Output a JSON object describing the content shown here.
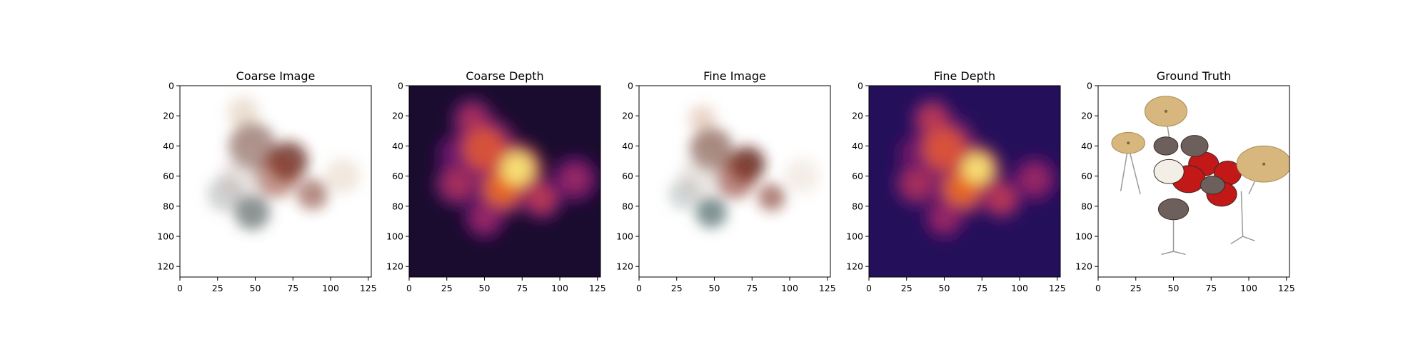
{
  "chart_data": [
    {
      "type": "heatmap",
      "title": "Coarse Image",
      "render": "rgb-image",
      "xlim": [
        0,
        127
      ],
      "ylim": [
        127,
        0
      ],
      "xticks": [
        0,
        25,
        50,
        75,
        100,
        125
      ],
      "yticks": [
        0,
        20,
        40,
        60,
        80,
        100,
        120
      ],
      "blobs": [
        {
          "x": 42,
          "y": 18,
          "s": 8,
          "w": 0.35,
          "color": "#c9a684"
        },
        {
          "x": 48,
          "y": 40,
          "s": 12,
          "w": 0.55,
          "color": "#6b3c2e"
        },
        {
          "x": 72,
          "y": 50,
          "s": 10,
          "w": 0.75,
          "color": "#5c1c14"
        },
        {
          "x": 64,
          "y": 60,
          "s": 11,
          "w": 0.55,
          "color": "#8e3a2a"
        },
        {
          "x": 88,
          "y": 72,
          "s": 8,
          "w": 0.55,
          "color": "#7a2f22"
        },
        {
          "x": 108,
          "y": 60,
          "s": 9,
          "w": 0.35,
          "color": "#d7b9a0"
        },
        {
          "x": 30,
          "y": 72,
          "s": 9,
          "w": 0.4,
          "color": "#8a8c8c"
        },
        {
          "x": 48,
          "y": 84,
          "s": 9,
          "w": 0.65,
          "color": "#4f5b5b"
        },
        {
          "x": 40,
          "y": 60,
          "s": 10,
          "w": 0.3,
          "color": "#b7a39a"
        }
      ]
    },
    {
      "type": "heatmap",
      "title": "Coarse Depth",
      "render": "depth-map",
      "colormap": "inferno",
      "background": "#1a0c2e",
      "xlim": [
        0,
        127
      ],
      "ylim": [
        127,
        0
      ],
      "xticks": [
        0,
        25,
        50,
        75,
        100,
        125
      ],
      "yticks": [
        0,
        20,
        40,
        60,
        80,
        100,
        120
      ],
      "blobs": [
        {
          "x": 42,
          "y": 22,
          "s": 9,
          "w": 0.6
        },
        {
          "x": 50,
          "y": 42,
          "s": 14,
          "w": 0.75
        },
        {
          "x": 72,
          "y": 55,
          "s": 11,
          "w": 1.0
        },
        {
          "x": 62,
          "y": 68,
          "s": 12,
          "w": 0.8
        },
        {
          "x": 88,
          "y": 75,
          "s": 9,
          "w": 0.65
        },
        {
          "x": 110,
          "y": 62,
          "s": 10,
          "w": 0.55
        },
        {
          "x": 32,
          "y": 65,
          "s": 10,
          "w": 0.6
        },
        {
          "x": 50,
          "y": 88,
          "s": 9,
          "w": 0.55
        },
        {
          "x": 30,
          "y": 45,
          "s": 8,
          "w": 0.45
        }
      ]
    },
    {
      "type": "heatmap",
      "title": "Fine Image",
      "render": "rgb-image",
      "xlim": [
        0,
        127
      ],
      "ylim": [
        127,
        0
      ],
      "xticks": [
        0,
        25,
        50,
        75,
        100,
        125
      ],
      "yticks": [
        0,
        20,
        40,
        60,
        80,
        100,
        120
      ],
      "blobs": [
        {
          "x": 42,
          "y": 22,
          "s": 7,
          "w": 0.45,
          "color": "#d2a38a"
        },
        {
          "x": 48,
          "y": 42,
          "s": 11,
          "w": 0.6,
          "color": "#6e3a2c"
        },
        {
          "x": 72,
          "y": 52,
          "s": 9,
          "w": 0.8,
          "color": "#5a1a12"
        },
        {
          "x": 64,
          "y": 62,
          "s": 10,
          "w": 0.6,
          "color": "#8a3424"
        },
        {
          "x": 88,
          "y": 74,
          "s": 7,
          "w": 0.6,
          "color": "#7a2e20"
        },
        {
          "x": 108,
          "y": 60,
          "s": 9,
          "w": 0.3,
          "color": "#dcc4ae"
        },
        {
          "x": 30,
          "y": 72,
          "s": 8,
          "w": 0.4,
          "color": "#8f9a9a"
        },
        {
          "x": 48,
          "y": 84,
          "s": 8,
          "w": 0.7,
          "color": "#4a6464"
        },
        {
          "x": 40,
          "y": 60,
          "s": 10,
          "w": 0.3,
          "color": "#bca8a0"
        }
      ]
    },
    {
      "type": "heatmap",
      "title": "Fine Depth",
      "render": "depth-map",
      "colormap": "inferno",
      "background": "#24105a",
      "xlim": [
        0,
        127
      ],
      "ylim": [
        127,
        0
      ],
      "xticks": [
        0,
        25,
        50,
        75,
        100,
        125
      ],
      "yticks": [
        0,
        20,
        40,
        60,
        80,
        100,
        120
      ],
      "blobs": [
        {
          "x": 42,
          "y": 22,
          "s": 9,
          "w": 0.65
        },
        {
          "x": 50,
          "y": 42,
          "s": 14,
          "w": 0.75
        },
        {
          "x": 72,
          "y": 55,
          "s": 10,
          "w": 1.0
        },
        {
          "x": 62,
          "y": 68,
          "s": 12,
          "w": 0.8
        },
        {
          "x": 88,
          "y": 75,
          "s": 9,
          "w": 0.65
        },
        {
          "x": 110,
          "y": 62,
          "s": 10,
          "w": 0.55
        },
        {
          "x": 32,
          "y": 65,
          "s": 10,
          "w": 0.6
        },
        {
          "x": 50,
          "y": 88,
          "s": 9,
          "w": 0.55
        },
        {
          "x": 30,
          "y": 45,
          "s": 8,
          "w": 0.45
        }
      ]
    },
    {
      "type": "heatmap",
      "title": "Ground Truth",
      "render": "drum-kit-image",
      "xlim": [
        0,
        127
      ],
      "ylim": [
        127,
        0
      ],
      "xticks": [
        0,
        25,
        50,
        75,
        100,
        125
      ],
      "yticks": [
        0,
        20,
        40,
        60,
        80,
        100,
        120
      ],
      "palette": {
        "cymbal": "#d8b77e",
        "drum_red": "#c21818",
        "drum_dark": "#6d605c",
        "drum_head": "#f4efe6",
        "hardware": "#9a9a9a"
      }
    }
  ]
}
